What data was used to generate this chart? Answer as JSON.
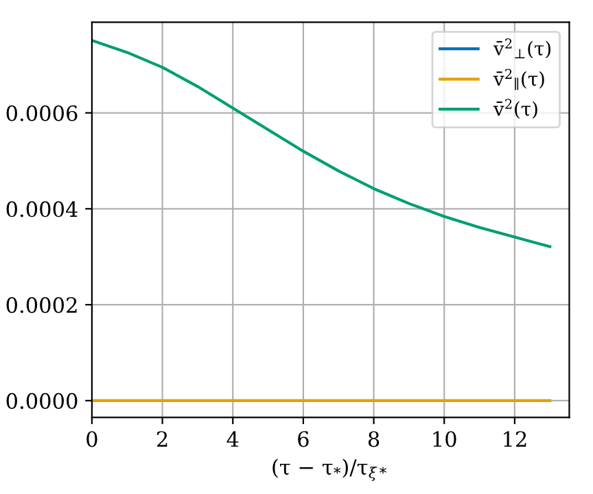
{
  "chart_data": {
    "type": "line",
    "xlabel": "(τ − τ$_{*}$)/τ$_{ξ*}$",
    "x": [
      0,
      1,
      2,
      3,
      4,
      5,
      6,
      7,
      8,
      9,
      10,
      11,
      12,
      13
    ],
    "series": [
      {
        "name": "v̄$^{2}$$_{⊥}$(τ)",
        "color": "#0072b2",
        "values": [
          null,
          null,
          null,
          null,
          null,
          null,
          null,
          null,
          null,
          null,
          null,
          null,
          null,
          null
        ]
      },
      {
        "name": "v̄$^{2}$$_{∥}$(τ)",
        "color": "#e69f00",
        "values": [
          0,
          0,
          0,
          0,
          0,
          0,
          0,
          0,
          0,
          0,
          0,
          0,
          0,
          0
        ]
      },
      {
        "name": "v̄$^{2}$(τ)",
        "color": "#009e73",
        "values": [
          0.000751,
          0.000726,
          0.000695,
          0.000655,
          0.00061,
          0.000565,
          0.00052,
          0.000479,
          0.000442,
          0.000411,
          0.000384,
          0.000361,
          0.000341,
          0.000321
        ]
      }
    ],
    "xlim": [
      0,
      13.55
    ],
    "ylim": [
      -3.5e-05,
      0.000789
    ],
    "xticks": [
      0,
      2,
      4,
      6,
      8,
      10,
      12
    ],
    "yticks": [
      {
        "value": 0,
        "label": "0.0000"
      },
      {
        "value": 0.0002,
        "label": "0.0002"
      },
      {
        "value": 0.0004,
        "label": "0.0004"
      },
      {
        "value": 0.0006,
        "label": "0.0006"
      }
    ],
    "grid": true,
    "legend": "top right",
    "marker": "none",
    "line_style": "solid"
  }
}
